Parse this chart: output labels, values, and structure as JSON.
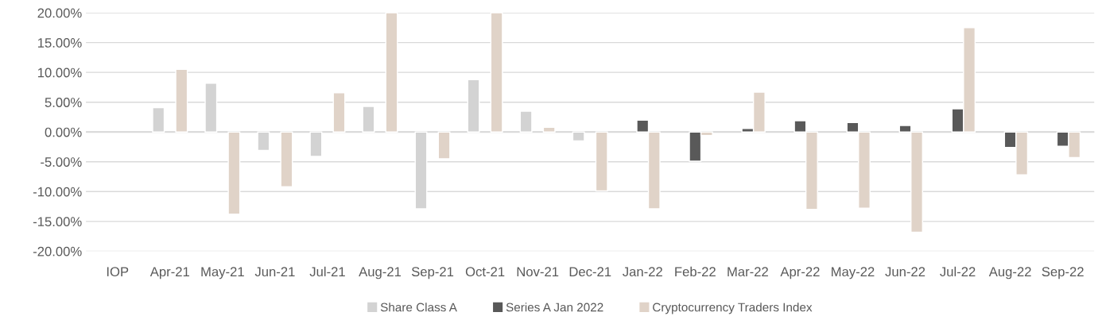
{
  "chart_data": {
    "type": "bar",
    "categories": [
      "IOP",
      "Apr-21",
      "May-21",
      "Jun-21",
      "Jul-21",
      "Aug-21",
      "Sep-21",
      "Oct-21",
      "Nov-21",
      "Dec-21",
      "Jan-22",
      "Feb-22",
      "Mar-22",
      "Apr-22",
      "May-22",
      "Jun-22",
      "Jul-22",
      "Aug-22",
      "Sep-22"
    ],
    "series": [
      {
        "name": "Share Class A",
        "color": "#d3d3d3",
        "values": [
          null,
          4.1,
          8.2,
          -3.1,
          -4.1,
          4.3,
          -12.9,
          8.8,
          3.5,
          -1.5,
          null,
          null,
          null,
          null,
          null,
          null,
          null,
          null,
          null
        ]
      },
      {
        "name": "Series A Jan 2022",
        "color": "#595959",
        "values": [
          null,
          null,
          null,
          null,
          null,
          null,
          null,
          null,
          null,
          null,
          2.0,
          -4.9,
          0.6,
          1.9,
          1.6,
          1.1,
          3.9,
          -2.6,
          -2.4
        ]
      },
      {
        "name": "Cryptocurrency Traders Index",
        "color": "#e0d3c8",
        "values": [
          null,
          10.5,
          -13.8,
          -9.2,
          6.6,
          20,
          -4.5,
          20,
          0.8,
          -9.9,
          -12.9,
          -0.6,
          6.7,
          -13.0,
          -12.8,
          -16.8,
          17.5,
          -7.2,
          -4.3
        ]
      }
    ],
    "ylim": [
      -20,
      20
    ],
    "yticks": [
      {
        "value": -20,
        "label": "-20.00%"
      },
      {
        "value": -15,
        "label": "-15.00%"
      },
      {
        "value": -10,
        "label": "-10.00%"
      },
      {
        "value": -5,
        "label": "-5.00%"
      },
      {
        "value": 0,
        "label": "0.00%"
      },
      {
        "value": 5,
        "label": "5.00%"
      },
      {
        "value": 10,
        "label": "10.00%"
      },
      {
        "value": 15,
        "label": "15.00%"
      },
      {
        "value": 20,
        "label": "20.00%"
      }
    ],
    "grid": "y",
    "legend": "bottom"
  }
}
